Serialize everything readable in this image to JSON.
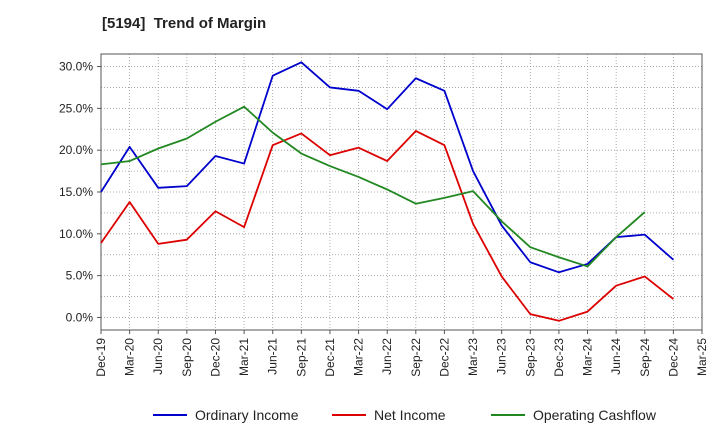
{
  "chart_data": {
    "type": "line",
    "title": "[5194]  Trend of Margin",
    "xlabel": "",
    "ylabel": "",
    "categories": [
      "Dec-19",
      "Mar-20",
      "Jun-20",
      "Sep-20",
      "Dec-20",
      "Mar-21",
      "Jun-21",
      "Sep-21",
      "Dec-21",
      "Mar-22",
      "Jun-22",
      "Sep-22",
      "Dec-22",
      "Mar-23",
      "Jun-23",
      "Sep-23",
      "Dec-23",
      "Mar-24",
      "Jun-24",
      "Sep-24",
      "Dec-24",
      "Mar-25"
    ],
    "ylim": [
      -1.5,
      31.5
    ],
    "yticks": [
      0,
      5,
      10,
      15,
      20,
      25,
      30
    ],
    "ytick_labels": [
      "0.0%",
      "5.0%",
      "10.0%",
      "15.0%",
      "20.0%",
      "25.0%",
      "30.0%"
    ],
    "grid": true,
    "legend_position": "bottom",
    "series": [
      {
        "name": "Ordinary Income",
        "color": "#0000cc",
        "values": [
          15.0,
          20.4,
          15.5,
          15.7,
          19.3,
          18.4,
          28.9,
          30.5,
          27.5,
          27.1,
          24.9,
          28.6,
          27.1,
          17.5,
          11.0,
          6.6,
          5.4,
          6.4,
          9.6,
          9.9,
          6.9,
          null
        ]
      },
      {
        "name": "Net Income",
        "color": "#dd0000",
        "values": [
          8.9,
          13.8,
          8.8,
          9.3,
          12.7,
          10.8,
          20.6,
          22.0,
          19.4,
          20.3,
          18.7,
          22.3,
          20.6,
          11.2,
          4.9,
          0.4,
          -0.4,
          0.7,
          3.8,
          4.9,
          2.2,
          null
        ]
      },
      {
        "name": "Operating Cashflow",
        "color": "#228822",
        "values": [
          18.3,
          18.7,
          20.2,
          21.4,
          23.4,
          25.2,
          22.1,
          19.6,
          18.1,
          16.8,
          15.3,
          13.6,
          14.3,
          15.1,
          11.5,
          8.4,
          7.2,
          6.1,
          9.6,
          12.6,
          null,
          null
        ]
      }
    ]
  }
}
